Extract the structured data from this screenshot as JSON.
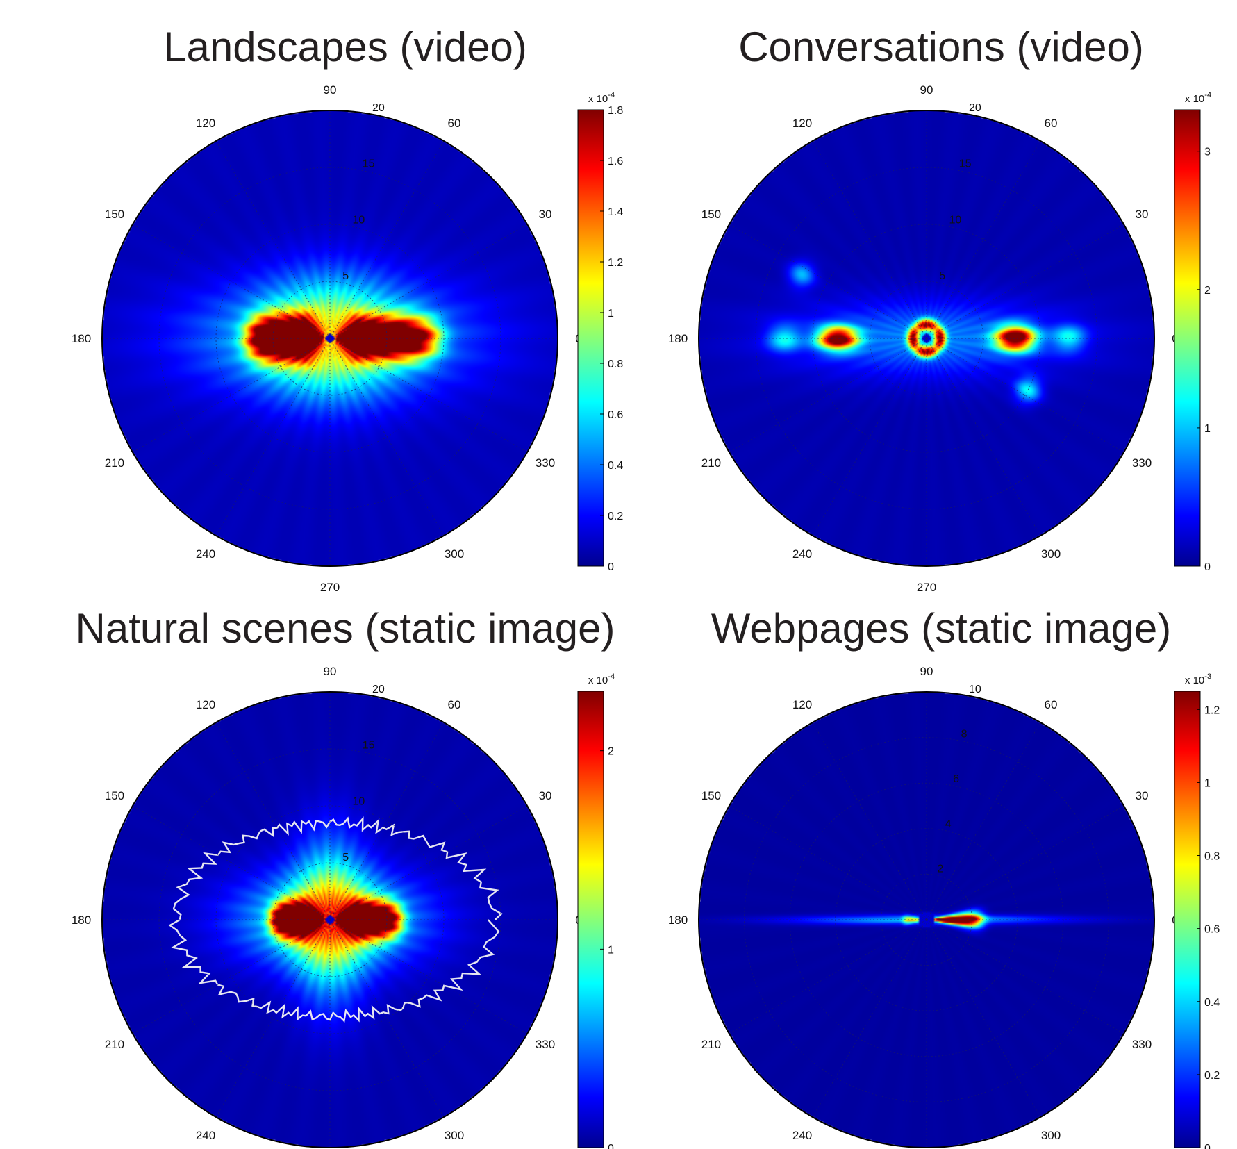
{
  "chart_data": [
    {
      "type": "heatmap",
      "subtype": "polar",
      "title": "Landscapes (video)",
      "angle_ticks": [
        "90",
        "60",
        "30",
        "0",
        "330",
        "300",
        "270",
        "240",
        "210",
        "180",
        "150",
        "120"
      ],
      "radial_ticks": [
        "5",
        "10",
        "15",
        "20"
      ],
      "colorbar": {
        "multiplier": "x 10",
        "exponent": "-4",
        "min": 0,
        "max": 1.8,
        "ticks": [
          "0",
          "0.2",
          "0.4",
          "0.6",
          "0.8",
          "1",
          "1.2",
          "1.4",
          "1.6",
          "1.8"
        ]
      },
      "colormap": "jet",
      "features": [
        {
          "kind": "lobe",
          "angle_deg": 0,
          "r0": 1,
          "r1": 9,
          "width": 0.45,
          "peak": 1.8
        },
        {
          "kind": "lobe",
          "angle_deg": 180,
          "r0": 1,
          "r1": 7,
          "width": 0.5,
          "peak": 1.8
        },
        {
          "kind": "halo",
          "rx": 15,
          "ry": 6,
          "peak": 0.6
        },
        {
          "kind": "halo",
          "rx": 7,
          "ry": 7,
          "peak": 0.5
        }
      ],
      "background": 0.1
    },
    {
      "type": "heatmap",
      "subtype": "polar",
      "title": "Conversations (video)",
      "angle_ticks": [
        "90",
        "60",
        "30",
        "0",
        "330",
        "300",
        "270",
        "240",
        "210",
        "180",
        "150",
        "120"
      ],
      "radial_ticks": [
        "5",
        "10",
        "15",
        "20"
      ],
      "colorbar": {
        "multiplier": "x 10",
        "exponent": "-4",
        "min": 0,
        "max": 3.3,
        "ticks": [
          "0",
          "1",
          "2",
          "3"
        ]
      },
      "colormap": "jet",
      "features": [
        {
          "kind": "blob",
          "angle_deg": 0,
          "r": 7.8,
          "sx": 1.2,
          "sy": 0.75,
          "peak": 3.3
        },
        {
          "kind": "blob",
          "angle_deg": 180,
          "r": 7.8,
          "sx": 1.2,
          "sy": 0.7,
          "peak": 3.2
        },
        {
          "kind": "ring",
          "r": 1.2,
          "width": 0.5,
          "peak": 2.6
        },
        {
          "kind": "blob",
          "angle_deg": 0,
          "r": 12.5,
          "sx": 1,
          "sy": 0.8,
          "peak": 0.9
        },
        {
          "kind": "blob",
          "angle_deg": 180,
          "r": 12.5,
          "sx": 1,
          "sy": 0.8,
          "peak": 0.9
        },
        {
          "kind": "blob",
          "angle_deg": 333,
          "r": 10,
          "sx": 0.8,
          "sy": 0.8,
          "peak": 1.0
        },
        {
          "kind": "blob",
          "angle_deg": 153,
          "r": 12.3,
          "sx": 0.8,
          "sy": 0.8,
          "peak": 0.8
        },
        {
          "kind": "halo",
          "rx": 15,
          "ry": 4,
          "peak": 0.7
        }
      ],
      "background": 0.15
    },
    {
      "type": "heatmap",
      "subtype": "polar",
      "title": "Natural scenes (static image)",
      "angle_ticks": [
        "90",
        "60",
        "30",
        "0",
        "330",
        "300",
        "270",
        "240",
        "210",
        "180",
        "150",
        "120"
      ],
      "radial_ticks": [
        "5",
        "10",
        "15",
        "20"
      ],
      "colorbar": {
        "multiplier": "x 10",
        "exponent": "-4",
        "min": 0,
        "max": 2.3,
        "ticks": [
          "0",
          "1",
          "2"
        ]
      },
      "colormap": "jet",
      "features": [
        {
          "kind": "lobe",
          "angle_deg": 0,
          "r0": 1,
          "r1": 6,
          "width": 0.4,
          "peak": 2.3
        },
        {
          "kind": "lobe",
          "angle_deg": 180,
          "r0": 1,
          "r1": 5,
          "width": 0.4,
          "peak": 2.3
        },
        {
          "kind": "halo",
          "rx": 10,
          "ry": 5,
          "peak": 1.0
        },
        {
          "kind": "halo",
          "rx": 4,
          "ry": 9,
          "peak": 0.9
        }
      ],
      "contour": {
        "color": "#e6e6f0",
        "r_at_0": 14.5,
        "r_at_90": 8.5,
        "r_at_180": 13.5,
        "r_at_270": 8.5
      },
      "background": 0.1
    },
    {
      "type": "heatmap",
      "subtype": "polar",
      "title": "Webpages (static image)",
      "angle_ticks": [
        "90",
        "60",
        "30",
        "0",
        "330",
        "300",
        "270",
        "240",
        "210",
        "180",
        "150",
        "120"
      ],
      "radial_ticks": [
        "2",
        "4",
        "6",
        "8",
        "10"
      ],
      "colorbar": {
        "multiplier": "x 10",
        "exponent": "-3",
        "min": 0,
        "max": 1.25,
        "ticks": [
          "0",
          "0.2",
          "0.4",
          "0.6",
          "0.8",
          "1",
          "1.2"
        ]
      },
      "colormap": "jet",
      "features": [
        {
          "kind": "lobe",
          "angle_deg": 0,
          "r0": 0.3,
          "r1": 2.3,
          "width": 0.12,
          "peak": 1.25
        },
        {
          "kind": "lobe",
          "angle_deg": 180,
          "r0": 0.3,
          "r1": 1.0,
          "width": 0.15,
          "peak": 0.45
        },
        {
          "kind": "halo",
          "rx": 7,
          "ry": 0.25,
          "peak": 0.35
        }
      ],
      "background": 0.04
    }
  ]
}
